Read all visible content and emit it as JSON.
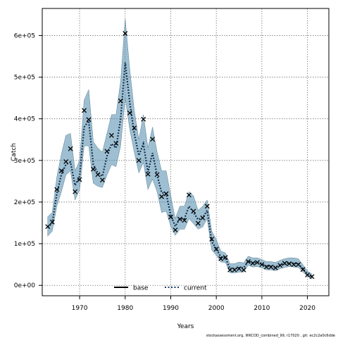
{
  "chart_data": {
    "type": "line",
    "title": "",
    "xlabel": "Years",
    "ylabel": "Catch",
    "xlim": [
      1961.8,
      2024.7
    ],
    "ylim": [
      -25000,
      665000
    ],
    "x_ticks": [
      1970,
      1980,
      1990,
      2000,
      2010,
      2020
    ],
    "x_tick_labels": [
      "1970",
      "1980",
      "1990",
      "2000",
      "2010",
      "2020"
    ],
    "y_ticks": [
      0,
      100000,
      200000,
      300000,
      400000,
      500000,
      600000
    ],
    "y_tick_labels": [
      "0e+00",
      "1e+05",
      "2e+05",
      "3e+05",
      "4e+05",
      "5e+05",
      "6e+05"
    ],
    "grid": true,
    "legend_position": "bottom-center",
    "legend": [
      {
        "label": "base",
        "style": "solid",
        "color": "#000000"
      },
      {
        "label": "current",
        "style": "dotted",
        "color": "#1a3a6b"
      }
    ],
    "series": [
      {
        "name": "base",
        "marker": "x",
        "x": [
          1963,
          1964,
          1965,
          1966,
          1967,
          1968,
          1969,
          1970,
          1971,
          1972,
          1973,
          1974,
          1975,
          1976,
          1977,
          1978,
          1979,
          1980,
          1981,
          1982,
          1983,
          1984,
          1985,
          1986,
          1987,
          1988,
          1989,
          1990,
          1991,
          1992,
          1993,
          1994,
          1995,
          1996,
          1997,
          1998,
          1999,
          2000,
          2001,
          2002,
          2003,
          2004,
          2005,
          2006,
          2007,
          2008,
          2009,
          2010,
          2011,
          2012,
          2013,
          2014,
          2015,
          2016,
          2017,
          2018,
          2019,
          2020,
          2021
        ],
        "y": [
          141000,
          152000,
          230000,
          275000,
          297000,
          328000,
          225000,
          254000,
          420000,
          398000,
          279000,
          266000,
          253000,
          322000,
          360000,
          341000,
          443000,
          605000,
          414000,
          378000,
          300000,
          399000,
          267000,
          351000,
          266000,
          213000,
          220000,
          164000,
          133000,
          159000,
          156000,
          217000,
          178000,
          149000,
          162000,
          190000,
          111000,
          87000,
          64000,
          67000,
          37000,
          37000,
          40000,
          37000,
          57000,
          53000,
          55000,
          50000,
          44000,
          44000,
          42000,
          48000,
          53000,
          52000,
          50000,
          50000,
          38000,
          25000,
          21000
        ]
      },
      {
        "name": "current",
        "line": "dotted",
        "x": [
          1963,
          1964,
          1965,
          1966,
          1967,
          1968,
          1969,
          1970,
          1971,
          1972,
          1973,
          1974,
          1975,
          1976,
          1977,
          1978,
          1979,
          1980,
          1981,
          1982,
          1983,
          1984,
          1985,
          1986,
          1987,
          1988,
          1989,
          1990,
          1991,
          1992,
          1993,
          1994,
          1995,
          1996,
          1997,
          1998,
          1999,
          2000,
          2001,
          2002,
          2003,
          2004,
          2005,
          2006,
          2007,
          2008,
          2009,
          2010,
          2011,
          2012,
          2013,
          2014,
          2015,
          2016,
          2017,
          2018,
          2019,
          2020,
          2021
        ],
        "y": [
          140000,
          149000,
          220000,
          266000,
          290000,
          296000,
          240000,
          262000,
          380000,
          395000,
          290000,
          270000,
          262000,
          310000,
          340000,
          330000,
          400000,
          535000,
          440000,
          365000,
          312000,
          340000,
          272000,
          318000,
          265000,
          223000,
          220000,
          168000,
          142000,
          160000,
          160000,
          190000,
          175000,
          158000,
          162000,
          180000,
          105000,
          88000,
          68000,
          66000,
          40000,
          40000,
          42000,
          42000,
          58000,
          54000,
          55000,
          51000,
          46000,
          46000,
          44000,
          48000,
          52000,
          54000,
          53000,
          52000,
          40000,
          27000,
          20000
        ]
      }
    ],
    "interval": {
      "x": [
        1963,
        1964,
        1965,
        1966,
        1967,
        1968,
        1969,
        1970,
        1971,
        1972,
        1973,
        1974,
        1975,
        1976,
        1977,
        1978,
        1979,
        1980,
        1981,
        1982,
        1983,
        1984,
        1985,
        1986,
        1987,
        1988,
        1989,
        1990,
        1991,
        1992,
        1993,
        1994,
        1995,
        1996,
        1997,
        1998,
        1999,
        2000,
        2001,
        2002,
        2003,
        2004,
        2005,
        2006,
        2007,
        2008,
        2009,
        2010,
        2011,
        2012,
        2013,
        2014,
        2015,
        2016,
        2017,
        2018,
        2019,
        2020,
        2021
      ],
      "upper": [
        165000,
        175000,
        260000,
        315000,
        360000,
        365000,
        275000,
        300000,
        445000,
        470000,
        345000,
        330000,
        320000,
        365000,
        410000,
        410000,
        490000,
        640000,
        520000,
        420000,
        350000,
        410000,
        330000,
        380000,
        320000,
        275000,
        275000,
        215000,
        160000,
        190000,
        190000,
        225000,
        215000,
        180000,
        190000,
        205000,
        130000,
        110000,
        82000,
        78000,
        52000,
        52000,
        56000,
        54000,
        70000,
        66000,
        66000,
        62000,
        57000,
        57000,
        55000,
        60000,
        64000,
        66000,
        66000,
        64000,
        50000,
        34000,
        27000
      ],
      "lower": [
        118000,
        130000,
        190000,
        225000,
        265000,
        275000,
        205000,
        230000,
        335000,
        335000,
        245000,
        238000,
        235000,
        265000,
        290000,
        285000,
        335000,
        450000,
        375000,
        320000,
        270000,
        295000,
        230000,
        255000,
        225000,
        175000,
        178000,
        142000,
        120000,
        135000,
        135000,
        160000,
        148000,
        135000,
        140000,
        160000,
        85000,
        72000,
        56000,
        55000,
        30000,
        30000,
        32000,
        32000,
        48000,
        44000,
        45000,
        42000,
        37000,
        37000,
        35000,
        40000,
        43000,
        45000,
        44000,
        43000,
        32000,
        22000,
        15000
      ],
      "color": "#4f8aab"
    },
    "footnote": "stockassessment.org, WKCOD_combined_99, r17020 , git: ec2c2a0c6dde"
  }
}
